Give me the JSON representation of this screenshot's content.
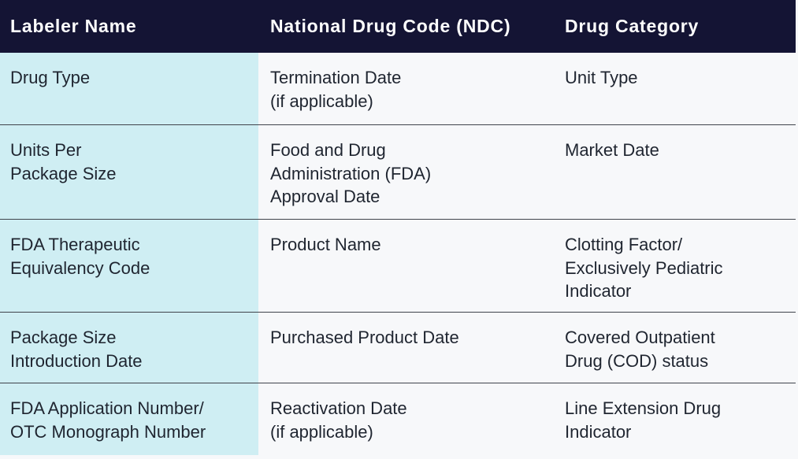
{
  "header": {
    "col1": "Labeler Name",
    "col2": "National Drug Code (NDC)",
    "col3": "Drug Category"
  },
  "rows": [
    {
      "col1": [
        "Drug Type"
      ],
      "col2": [
        "Termination Date",
        "(if applicable)"
      ],
      "col3": [
        "Unit Type"
      ]
    },
    {
      "col1": [
        "Units Per",
        "Package Size"
      ],
      "col2": [
        "Food and Drug",
        "Administration (FDA)",
        "Approval Date"
      ],
      "col3": [
        "Market Date"
      ]
    },
    {
      "col1": [
        "FDA Therapeutic",
        "Equivalency Code"
      ],
      "col2": [
        "Product Name"
      ],
      "col3": [
        "Clotting Factor/",
        "Exclusively Pediatric",
        "Indicator"
      ]
    },
    {
      "col1": [
        "Package Size",
        "Introduction Date"
      ],
      "col2": [
        "Purchased Product Date"
      ],
      "col3": [
        "Covered Outpatient",
        "Drug (COD) status"
      ]
    },
    {
      "col1": [
        "FDA Application Number/",
        "OTC Monograph Number"
      ],
      "col2": [
        "Reactivation Date",
        "(if applicable)"
      ],
      "col3": [
        "Line Extension Drug",
        "Indicator"
      ]
    }
  ],
  "colors": {
    "header_bg": "#141434",
    "header_text": "#ffffff",
    "first_column_bg": "#cfeef3",
    "body_bg": "#f7f8fa",
    "body_text": "#1f2530",
    "divider": "#3f434b"
  }
}
